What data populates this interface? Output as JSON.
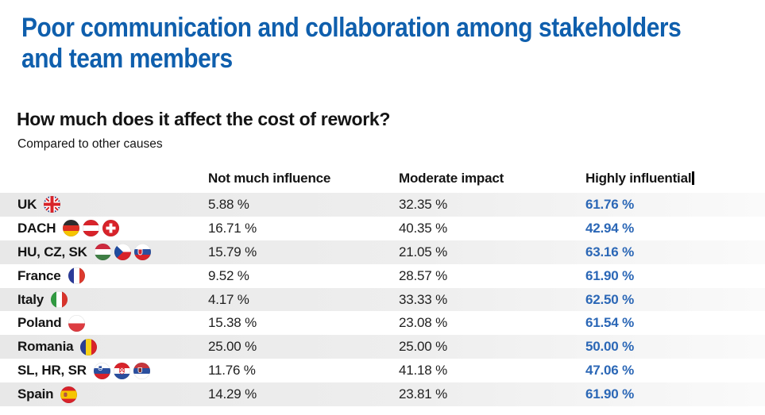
{
  "header": {
    "title_line1": "Poor communication and collaboration among stakeholders",
    "title_line2": "and team members",
    "question": "How much does it affect the cost of rework?",
    "subtitle": "Compared to other causes"
  },
  "colors": {
    "title_blue": "#0f5fad",
    "highlight_value_blue": "#2b67b6",
    "stripe_gray": "#e8e8e8",
    "text_dark": "#141414"
  },
  "chart_data": {
    "type": "table",
    "unit": "%",
    "columns": [
      "Not much influence",
      "Moderate impact",
      "Highly influential"
    ],
    "rows": [
      {
        "region": "UK",
        "flags": [
          "uk"
        ],
        "values": [
          "5.88 %",
          "32.35 %",
          "61.76 %"
        ]
      },
      {
        "region": "DACH",
        "flags": [
          "de",
          "at",
          "ch"
        ],
        "values": [
          "16.71 %",
          "40.35 %",
          "42.94 %"
        ]
      },
      {
        "region": "HU, CZ, SK",
        "flags": [
          "hu",
          "cz",
          "sk"
        ],
        "values": [
          "15.79 %",
          "21.05 %",
          "63.16 %"
        ]
      },
      {
        "region": "France",
        "flags": [
          "fr"
        ],
        "values": [
          "9.52 %",
          "28.57 %",
          "61.90 %"
        ]
      },
      {
        "region": "Italy",
        "flags": [
          "it"
        ],
        "values": [
          "4.17 %",
          "33.33 %",
          "62.50 %"
        ]
      },
      {
        "region": "Poland",
        "flags": [
          "pl"
        ],
        "values": [
          "15.38 %",
          "23.08 %",
          "61.54 %"
        ]
      },
      {
        "region": "Romania",
        "flags": [
          "ro"
        ],
        "values": [
          "25.00 %",
          "25.00 %",
          "50.00 %"
        ]
      },
      {
        "region": "SL, HR, SR",
        "flags": [
          "si",
          "hr",
          "rs"
        ],
        "values": [
          "11.76 %",
          "41.18 %",
          "47.06 %"
        ]
      },
      {
        "region": "Spain",
        "flags": [
          "es"
        ],
        "values": [
          "14.29 %",
          "23.81 %",
          "61.90 %"
        ]
      }
    ]
  }
}
